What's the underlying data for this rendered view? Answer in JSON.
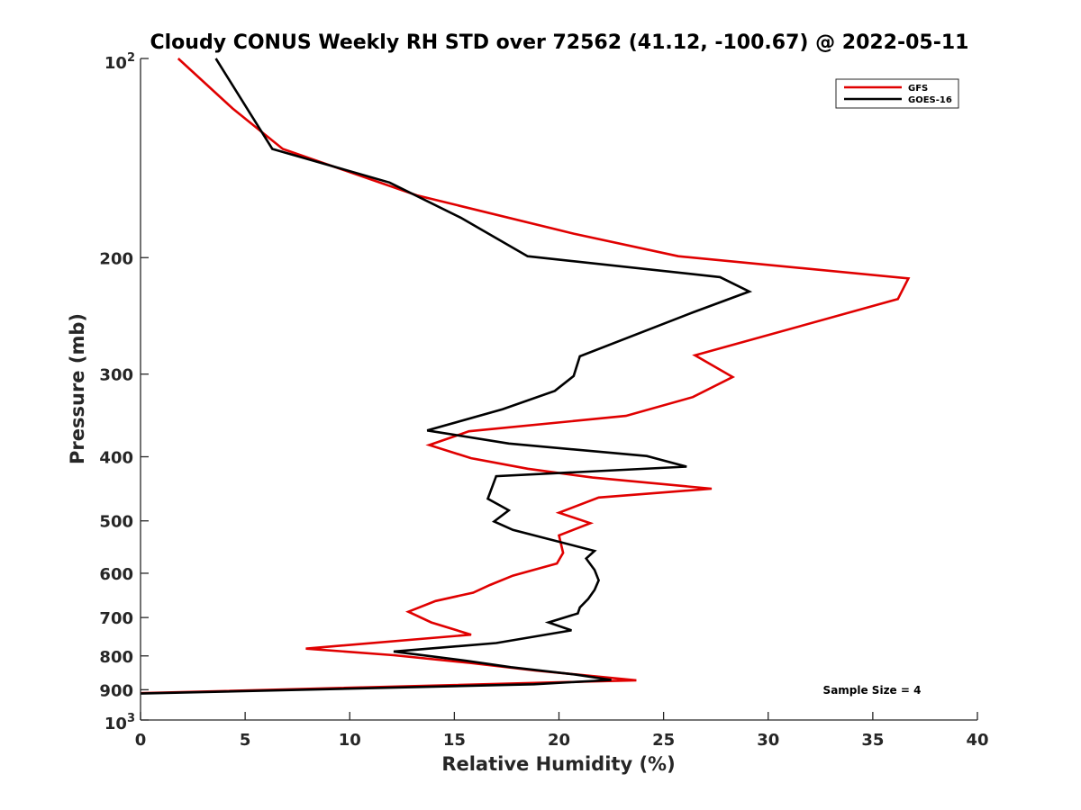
{
  "chart_data": {
    "type": "line",
    "title": "Cloudy CONUS Weekly RH STD over 72562 (41.12, -100.67) @ 2022-05-11",
    "xlabel": "Relative Humidity (%)",
    "ylabel": "Pressure (mb)",
    "xlim": [
      0,
      40
    ],
    "ylim": [
      100,
      1000
    ],
    "y_scale": "log",
    "y_reversed": true,
    "grid": false,
    "x_ticks": [
      "0",
      "5",
      "10",
      "15",
      "20",
      "25",
      "30",
      "35",
      "40"
    ],
    "y_ticks": [
      {
        "value": 200,
        "label": "200"
      },
      {
        "value": 300,
        "label": "300"
      },
      {
        "value": 400,
        "label": "400"
      },
      {
        "value": 500,
        "label": "500"
      },
      {
        "value": 600,
        "label": "600"
      },
      {
        "value": 700,
        "label": "700"
      },
      {
        "value": 800,
        "label": "800"
      },
      {
        "value": 900,
        "label": "900"
      }
    ],
    "y_top_label": {
      "base": "10",
      "exp": "2"
    },
    "y_bottom_label": {
      "base": "10",
      "exp": "3"
    },
    "legend": {
      "position": "top-right"
    },
    "annotation": "Sample Size = 4",
    "series": [
      {
        "name": "GFS",
        "color": "#e00000",
        "x": [
          1.8,
          4.4,
          6.8,
          13.2,
          20.7,
          25.7,
          36.7,
          36.2,
          26.5,
          28.3,
          26.4,
          23.2,
          15.7,
          13.8,
          15.8,
          18.5,
          21.6,
          27.3,
          21.9,
          20,
          21.5,
          20,
          20.2,
          19.9,
          17.8,
          16.7,
          15.9,
          14.1,
          12.8,
          13.9,
          15.8,
          7.9,
          12.1,
          15.8,
          18.9,
          23.7,
          0
        ],
        "y": [
          100,
          119,
          137,
          161,
          184,
          199,
          215,
          231,
          281,
          303,
          325,
          347,
          366,
          384,
          402,
          417,
          430,
          447,
          461,
          486,
          504,
          526,
          559,
          580,
          605,
          625,
          642,
          661,
          686,
          712,
          743,
          780,
          798,
          820,
          842,
          871,
          911
        ]
      },
      {
        "name": "GOES-16",
        "color": "#000000",
        "x": [
          3.6,
          6.3,
          11.9,
          15.3,
          18.5,
          27.7,
          29.1,
          26.4,
          21,
          20.7,
          19.8,
          17.3,
          13.7,
          17.6,
          24.2,
          26.1,
          17,
          16.6,
          17.6,
          16.9,
          17.8,
          21.7,
          21.3,
          21.7,
          21.9,
          21.7,
          21.4,
          21,
          20.9,
          19.5,
          20.6,
          17,
          12.1,
          15.6,
          17.7,
          20.8,
          22.5,
          18.8,
          0
        ],
        "y": [
          100,
          137,
          154,
          174,
          199,
          214,
          225,
          242,
          282,
          302,
          318,
          339,
          365,
          382,
          399,
          414,
          428,
          463,
          482,
          501,
          516,
          555,
          570,
          593,
          615,
          636,
          656,
          676,
          690,
          712,
          732,
          765,
          788,
          814,
          832,
          854,
          870,
          883,
          912
        ]
      }
    ]
  }
}
